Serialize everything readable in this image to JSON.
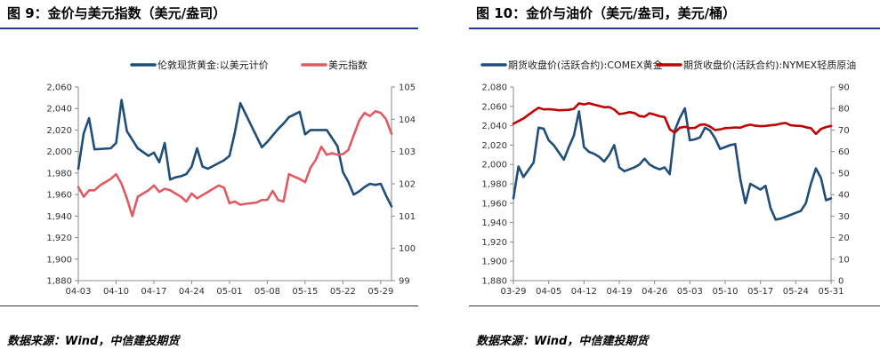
{
  "figures": [
    {
      "title": "图 9：金价与美元指数（美元/盎司）",
      "source": "数据来源：Wind，中信建投期货"
    },
    {
      "title": "图 10：金价与油价（美元/盎司，美元/桶）",
      "source": "数据来源：Wind，中信建投期货"
    }
  ],
  "chart_data": [
    {
      "type": "line",
      "title": "",
      "x_ticks": [
        "04-03",
        "04-10",
        "04-17",
        "04-24",
        "05-01",
        "05-08",
        "05-15",
        "05-22",
        "05-29"
      ],
      "x_range": [
        0,
        58
      ],
      "y_left": {
        "min": 1880,
        "max": 2060,
        "step": 20,
        "ticks": [
          "1,880",
          "1,900",
          "1,920",
          "1,940",
          "1,960",
          "1,980",
          "2,000",
          "2,020",
          "2,040",
          "2,060"
        ]
      },
      "y_right": {
        "min": 99,
        "max": 105,
        "step": 1,
        "ticks": [
          "99",
          "100",
          "101",
          "102",
          "103",
          "104",
          "105"
        ]
      },
      "legend_position": "top",
      "series": [
        {
          "name": "伦敦现货黄金:以美元计价",
          "axis": "left",
          "color": "#1f4e79",
          "x": [
            0,
            1,
            2,
            3,
            6,
            7,
            8,
            9,
            10,
            11,
            13,
            14,
            15,
            16,
            17,
            18,
            19,
            20,
            21,
            22,
            23,
            24,
            27,
            28,
            29,
            30,
            34,
            35,
            36,
            37,
            38,
            39,
            41,
            42,
            43,
            44,
            45,
            46,
            48,
            49,
            50,
            51,
            52,
            53,
            54,
            55,
            56,
            57,
            58
          ],
          "y": [
            1984,
            2017,
            2031,
            2002,
            2003,
            2008,
            2048,
            2019,
            2011,
            2003,
            1996,
            1999,
            1990,
            2008,
            1974,
            1976,
            1977,
            1979,
            1986,
            2003,
            1986,
            1984,
            1992,
            1996,
            2018,
            2045,
            2004,
            2009,
            2015,
            2021,
            2026,
            2032,
            2037,
            2016,
            2020,
            2020,
            2020,
            2020,
            2005,
            1981,
            1972,
            1960,
            1963,
            1967,
            1970,
            1969,
            1970,
            1959,
            1949
          ]
        },
        {
          "name": "美元指数",
          "axis": "right",
          "color": "#e05a63",
          "x": [
            0,
            1,
            2,
            3,
            4,
            5,
            6,
            7,
            8,
            9,
            10,
            11,
            12,
            13,
            14,
            15,
            16,
            17,
            18,
            19,
            20,
            21,
            22,
            23,
            24,
            25,
            26,
            27,
            28,
            29,
            30,
            31,
            32,
            33,
            34,
            35,
            36,
            37,
            38,
            39,
            40,
            41,
            42,
            43,
            44,
            45,
            46,
            47,
            48,
            49,
            50,
            51,
            52,
            53,
            54,
            55,
            56,
            57,
            58
          ],
          "y": [
            101.9,
            101.6,
            101.8,
            101.8,
            101.95,
            102.05,
            102.15,
            102.3,
            102.0,
            101.55,
            101.0,
            101.6,
            101.7,
            101.8,
            101.95,
            101.75,
            101.85,
            101.8,
            101.7,
            101.6,
            101.45,
            101.7,
            101.55,
            101.65,
            101.75,
            101.85,
            101.95,
            101.88,
            101.4,
            101.45,
            101.35,
            101.38,
            101.4,
            101.42,
            101.5,
            101.5,
            101.78,
            101.5,
            101.45,
            102.3,
            102.22,
            102.15,
            102.05,
            102.5,
            102.75,
            103.15,
            102.9,
            102.95,
            102.9,
            102.92,
            103.05,
            103.5,
            103.95,
            104.2,
            104.1,
            104.25,
            104.2,
            104.0,
            103.55
          ]
        }
      ]
    },
    {
      "type": "line",
      "title": "",
      "x_ticks": [
        "03-29",
        "04-05",
        "04-12",
        "04-19",
        "04-26",
        "05-03",
        "05-10",
        "05-17",
        "05-24",
        "05-31"
      ],
      "x_range": [
        0,
        63
      ],
      "y_left": {
        "min": 1880,
        "max": 2080,
        "step": 20,
        "ticks": [
          "1,880",
          "1,900",
          "1,920",
          "1,940",
          "1,960",
          "1,980",
          "2,000",
          "2,020",
          "2,040",
          "2,060",
          "2,080"
        ]
      },
      "y_right": {
        "min": 0,
        "max": 90,
        "step": 10,
        "ticks": [
          "0",
          "10",
          "20",
          "30",
          "40",
          "50",
          "60",
          "70",
          "80",
          "90"
        ]
      },
      "legend_position": "top",
      "series": [
        {
          "name": "期货收盘价(活跃合约):COMEX黄金",
          "axis": "left",
          "color": "#1f4e79",
          "x": [
            0,
            1,
            2,
            4,
            5,
            6,
            7,
            8,
            10,
            11,
            12,
            13,
            14,
            15,
            16,
            17,
            18,
            19,
            20,
            21,
            22,
            23,
            24,
            25,
            26,
            27,
            28,
            29,
            30,
            31,
            32,
            33,
            34,
            35,
            36,
            37,
            38,
            39,
            40,
            41,
            42,
            43,
            44,
            45,
            46,
            47,
            48,
            49,
            50,
            51,
            52,
            53,
            54,
            55,
            56,
            57,
            58,
            59,
            60,
            61,
            62,
            63
          ],
          "y": [
            1965,
            1998,
            1987,
            2002,
            2038,
            2037,
            2025,
            2020,
            2005,
            2018,
            2030,
            2055,
            2018,
            2013,
            2011,
            2008,
            2003,
            2010,
            2020,
            1997,
            1993,
            1995,
            1997,
            2000,
            2006,
            2000,
            1997,
            1995,
            1997,
            1990,
            2035,
            2048,
            2058,
            2025,
            2026,
            2028,
            2038,
            2035,
            2027,
            2016,
            2018,
            2020,
            2021,
            1985,
            1960,
            1980,
            1977,
            1974,
            1978,
            1955,
            1943,
            1944,
            1946,
            1948,
            1950,
            1952,
            1960,
            1980,
            1996,
            1986,
            1963,
            1965
          ]
        },
        {
          "name": "期货收盘价(活跃合约):NYMEX轻质原油",
          "axis": "right",
          "color": "#c00000",
          "x": [
            0,
            1,
            2,
            3,
            4,
            5,
            6,
            7,
            8,
            9,
            10,
            11,
            12,
            13,
            14,
            15,
            16,
            17,
            18,
            19,
            20,
            21,
            22,
            23,
            24,
            25,
            26,
            27,
            28,
            29,
            30,
            31,
            32,
            33,
            34,
            35,
            36,
            37,
            38,
            39,
            40,
            41,
            42,
            43,
            44,
            45,
            46,
            47,
            48,
            49,
            50,
            51,
            52,
            53,
            54,
            55,
            56,
            57,
            58,
            59,
            60,
            61,
            62,
            63
          ],
          "y": [
            72.9,
            74.2,
            75.4,
            77.1,
            78.8,
            80.4,
            79.6,
            79.7,
            79.5,
            79.2,
            79.3,
            79.4,
            79.9,
            82.4,
            81.9,
            82.5,
            81.8,
            81.2,
            80.6,
            80.7,
            79.5,
            77.4,
            77.8,
            78.3,
            77.9,
            76.5,
            76.2,
            77.8,
            77.2,
            76.4,
            76.0,
            70.4,
            68.8,
            71.1,
            71.5,
            70.9,
            71.0,
            72.4,
            72.6,
            71.6,
            70.0,
            70.3,
            70.9,
            71.0,
            71.2,
            71.1,
            72.0,
            72.5,
            72.0,
            71.8,
            71.9,
            72.2,
            72.4,
            73.0,
            73.3,
            72.2,
            72.0,
            71.9,
            71.3,
            70.9,
            68.2,
            70.5,
            71.4,
            71.9
          ]
        }
      ]
    }
  ]
}
